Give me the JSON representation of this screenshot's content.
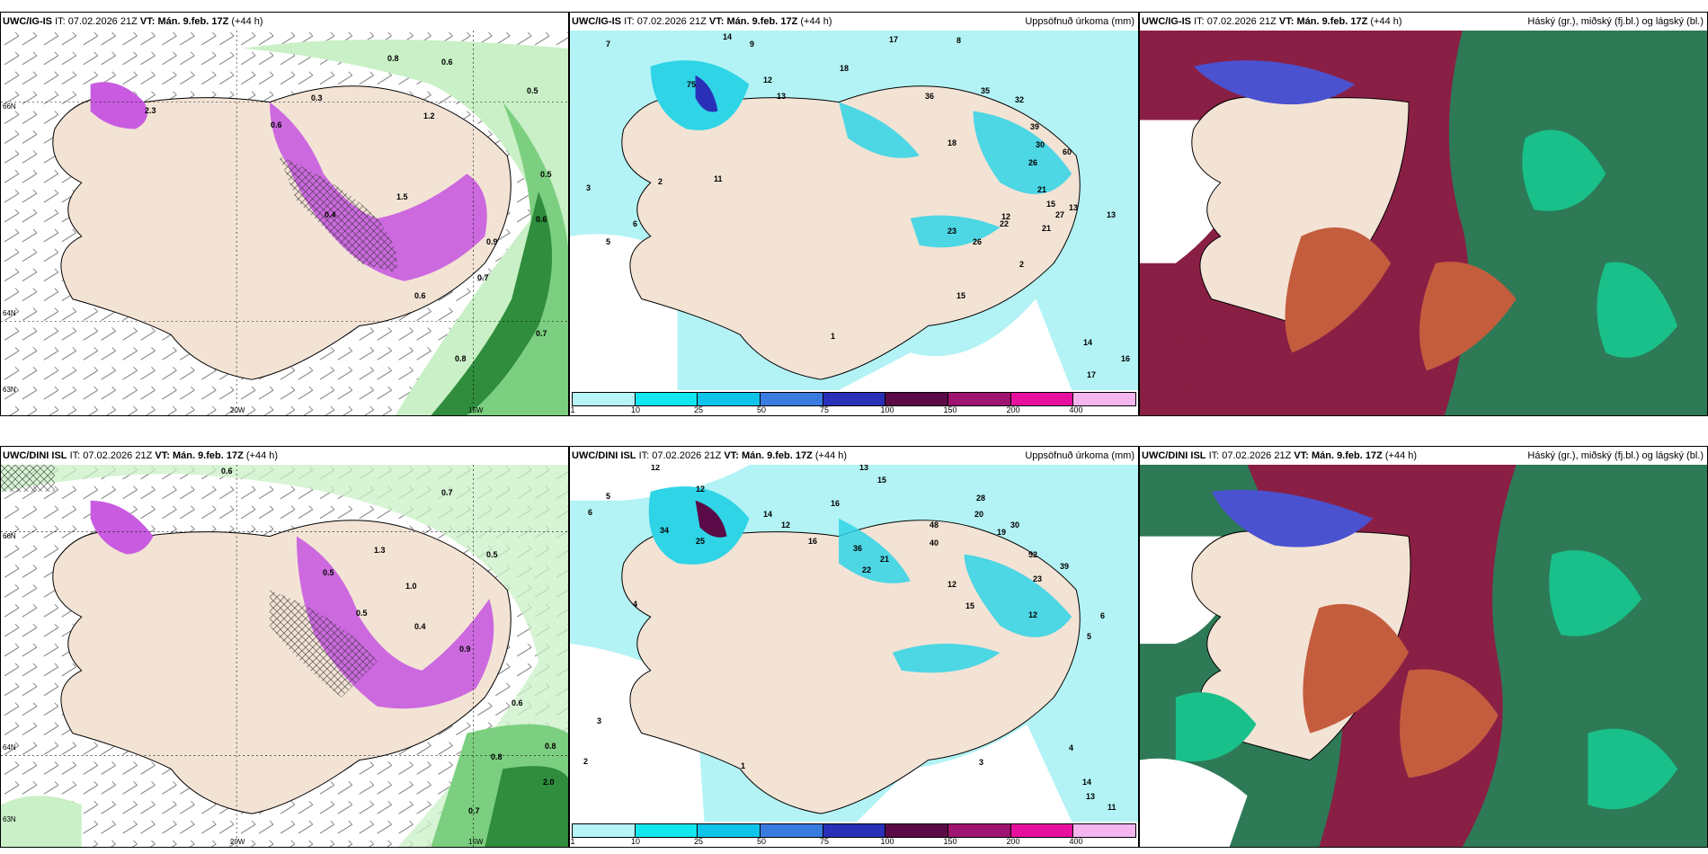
{
  "panels": [
    {
      "id": "tl",
      "model": "UWC/IG-IS",
      "it_label": "IT:",
      "it": "07.02.2026 21Z",
      "vt_label": "VT:",
      "vt": "Mán. 9.feb. 17Z",
      "lead": "(+44 h)",
      "right_title": "",
      "lon_labels": [
        "20W",
        "15W"
      ],
      "lat_labels": [
        "66N",
        "64N",
        "63N"
      ]
    },
    {
      "id": "tm",
      "model": "UWC/IG-IS",
      "it_label": "IT:",
      "it": "07.02.2026 21Z",
      "vt_label": "VT:",
      "vt": "Mán. 9.feb. 17Z",
      "lead": "(+44 h)",
      "right_title": "Uppsöfnuð úrkoma (mm)"
    },
    {
      "id": "tr",
      "model": "UWC/IG-IS",
      "it_label": "IT:",
      "it": "07.02.2026 21Z",
      "vt_label": "VT:",
      "vt": "Mán. 9.feb. 17Z",
      "lead": "(+44 h)",
      "right_title": "Háský (gr.), miðský (fj.bl.) og lágský (bl.)"
    },
    {
      "id": "bl",
      "model": "UWC/DINI ISL",
      "it_label": "IT:",
      "it": "07.02.2026 21Z",
      "vt_label": "VT:",
      "vt": "Mán. 9.feb. 17Z",
      "lead": "(+44 h)",
      "right_title": "",
      "lon_labels": [
        "20W",
        "15W"
      ],
      "lat_labels": [
        "66N",
        "64N",
        "63N"
      ]
    },
    {
      "id": "bm",
      "model": "UWC/DINI ISL",
      "it_label": "IT:",
      "it": "07.02.2026 21Z",
      "vt_label": "VT:",
      "vt": "Mán. 9.feb. 17Z",
      "lead": "(+44 h)",
      "right_title": "Uppsöfnuð úrkoma (mm)"
    },
    {
      "id": "br",
      "model": "UWC/DINI ISL",
      "it_label": "IT:",
      "it": "07.02.2026 21Z",
      "vt_label": "VT:",
      "vt": "Mán. 9.feb. 17Z",
      "lead": "(+44 h)",
      "right_title": "Háský (gr.), miðský (fj.bl.) og lágský (bl.)"
    }
  ],
  "colorbar": {
    "labels": [
      "1",
      "10",
      "25",
      "50",
      "75",
      "100",
      "150",
      "200",
      "400"
    ],
    "colors": [
      "#b7f4f7",
      "#12e6ee",
      "#0fc4ea",
      "#3a7be0",
      "#2a2fb8",
      "#5a0a46",
      "#9e1470",
      "#e60f9e",
      "#f4b6ee"
    ]
  },
  "colors": {
    "land": "#f3e3d5",
    "sea": "#ffffff",
    "precip_light": "#b3f3f5",
    "precip_mid": "#2fd4e6",
    "snow_pink": "#c85be0",
    "green_light": "#c9f0c6",
    "green_dark": "#2f8d3d",
    "cloud_high": "#2e7a56",
    "cloud_mid": "#8a1f45",
    "cloud_low": "#4a52d0",
    "cloud_lowmix": "#c45d3e"
  },
  "tm_values": [
    "14",
    "9",
    "7",
    "17",
    "8",
    "18",
    "12",
    "13",
    "35",
    "36",
    "32",
    "39",
    "30",
    "60",
    "75",
    "26",
    "21",
    "15",
    "13",
    "27",
    "12",
    "18",
    "22",
    "23",
    "26",
    "21",
    "2",
    "15",
    "5",
    "1",
    "3",
    "2",
    "6",
    "11",
    "14",
    "16",
    "17",
    "13"
  ],
  "bm_values": [
    "12",
    "12",
    "13",
    "15",
    "16",
    "28",
    "20",
    "5",
    "6",
    "14",
    "12",
    "16",
    "48",
    "40",
    "19",
    "30",
    "52",
    "39",
    "12",
    "36",
    "21",
    "15",
    "23",
    "25",
    "34",
    "22",
    "12",
    "4",
    "6",
    "5",
    "3",
    "2",
    "1",
    "14",
    "13",
    "11",
    "4",
    "3"
  ],
  "tl_values": [
    "0.8",
    "0.6",
    "0.5",
    "0.3",
    "0.6",
    "1.2",
    "2.3",
    "0.7",
    "0.8",
    "0.6",
    "0.9",
    "1.5",
    "0.4",
    "0.7",
    "0.5",
    "0.6"
  ],
  "bl_values": [
    "0.7",
    "0.6",
    "0.5",
    "0.8",
    "0.6",
    "1.0",
    "2.0",
    "0.7",
    "0.4",
    "0.5",
    "0.9",
    "1.3",
    "0.8",
    "0.5"
  ]
}
